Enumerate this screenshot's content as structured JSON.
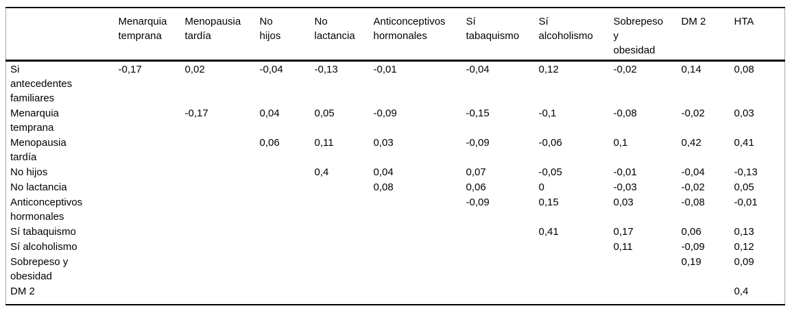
{
  "document": {
    "kind_label": "correlation-matrix-table",
    "language": "es"
  },
  "colors": {
    "background": "#ffffff",
    "text": "#000000",
    "rule_dark": "#000000",
    "rule_light": "#a9a9a9"
  },
  "table": {
    "columns": [
      "",
      "Menarquia temprana",
      "Menopausia tardía",
      "No hijos",
      "No lactancia",
      "Anticonceptivos hormonales",
      "Sí tabaquismo",
      "Sí alcoholismo",
      "Sobrepeso y obesidad",
      "DM 2",
      "HTA"
    ],
    "rows": [
      {
        "label": "Si antecedentes familiares",
        "values": [
          "-0,17",
          "0,02",
          "-0,04",
          "-0,13",
          "-0,01",
          "-0,04",
          "0,12",
          "-0,02",
          "0,14",
          "0,08"
        ]
      },
      {
        "label": "Menarquia temprana",
        "values": [
          "",
          "-0,17",
          "0,04",
          "0,05",
          "-0,09",
          "-0,15",
          "-0,1",
          "-0,08",
          "-0,02",
          "0,03"
        ]
      },
      {
        "label": "Menopausia tardía",
        "values": [
          "",
          "",
          "0,06",
          "0,11",
          "0,03",
          "-0,09",
          "-0,06",
          "0,1",
          "0,42",
          "0,41"
        ]
      },
      {
        "label": "No hijos",
        "values": [
          "",
          "",
          "",
          "0,4",
          "0,04",
          "0,07",
          "-0,05",
          "-0,01",
          "-0,04",
          "-0,13"
        ]
      },
      {
        "label": "No lactancia",
        "values": [
          "",
          "",
          "",
          "",
          "0,08",
          "0,06",
          "0",
          "-0,03",
          "-0,02",
          "0,05"
        ]
      },
      {
        "label": "Anticonceptivos hormonales",
        "values": [
          "",
          "",
          "",
          "",
          "",
          "-0,09",
          "0,15",
          "0,03",
          "-0,08",
          "-0,01"
        ]
      },
      {
        "label": "Sí tabaquismo",
        "values": [
          "",
          "",
          "",
          "",
          "",
          "",
          "0,41",
          "0,17",
          "0,06",
          "0,13"
        ]
      },
      {
        "label": "Sí alcoholismo",
        "values": [
          "",
          "",
          "",
          "",
          "",
          "",
          "",
          "0,11",
          "-0,09",
          "0,12"
        ]
      },
      {
        "label": "Sobrepeso y obesidad",
        "values": [
          "",
          "",
          "",
          "",
          "",
          "",
          "",
          "",
          "0,19",
          "0,09"
        ]
      },
      {
        "label": "DM 2",
        "values": [
          "",
          "",
          "",
          "",
          "",
          "",
          "",
          "",
          "",
          "0,4"
        ]
      }
    ]
  },
  "chart_data": {
    "type": "table",
    "title": "",
    "columns": [
      "Menarquia temprana",
      "Menopausia tardía",
      "No hijos",
      "No lactancia",
      "Anticonceptivos hormonales",
      "Sí tabaquismo",
      "Sí alcoholismo",
      "Sobrepeso y obesidad",
      "DM 2",
      "HTA"
    ],
    "row_labels": [
      "Si antecedentes familiares",
      "Menarquia temprana",
      "Menopausia tardía",
      "No hijos",
      "No lactancia",
      "Anticonceptivos hormonales",
      "Sí tabaquismo",
      "Sí alcoholismo",
      "Sobrepeso y obesidad",
      "DM 2"
    ],
    "matrix": [
      [
        -0.17,
        0.02,
        -0.04,
        -0.13,
        -0.01,
        -0.04,
        0.12,
        -0.02,
        0.14,
        0.08
      ],
      [
        null,
        -0.17,
        0.04,
        0.05,
        -0.09,
        -0.15,
        -0.1,
        -0.08,
        -0.02,
        0.03
      ],
      [
        null,
        null,
        0.06,
        0.11,
        0.03,
        -0.09,
        -0.06,
        0.1,
        0.42,
        0.41
      ],
      [
        null,
        null,
        null,
        0.4,
        0.04,
        0.07,
        -0.05,
        -0.01,
        -0.04,
        -0.13
      ],
      [
        null,
        null,
        null,
        null,
        0.08,
        0.06,
        0,
        -0.03,
        -0.02,
        0.05
      ],
      [
        null,
        null,
        null,
        null,
        null,
        -0.09,
        0.15,
        0.03,
        -0.08,
        -0.01
      ],
      [
        null,
        null,
        null,
        null,
        null,
        null,
        0.41,
        0.17,
        0.06,
        0.13
      ],
      [
        null,
        null,
        null,
        null,
        null,
        null,
        null,
        0.11,
        -0.09,
        0.12
      ],
      [
        null,
        null,
        null,
        null,
        null,
        null,
        null,
        null,
        0.19,
        0.09
      ],
      [
        null,
        null,
        null,
        null,
        null,
        null,
        null,
        null,
        null,
        0.4
      ]
    ],
    "decimal_separator": ",",
    "notes": "upper-triangular correlation matrix; blank cells in lower triangle"
  }
}
